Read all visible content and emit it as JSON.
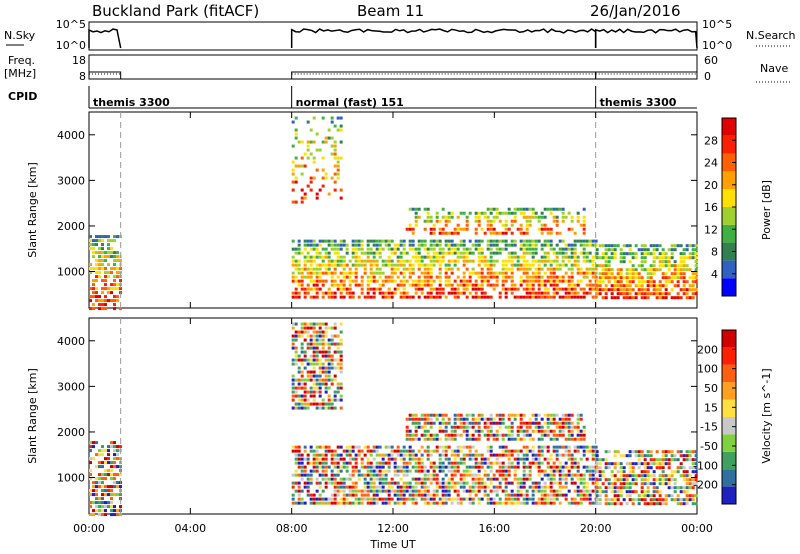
{
  "header": {
    "station": "Buckland Park (fitACF)",
    "beam": "Beam 11",
    "date": "26/Jan/2016"
  },
  "top_panels": {
    "nsky_label": "N.Sky",
    "nsky_ticks": [
      "10^5",
      "10^0"
    ],
    "nsearch_label": "N.Search",
    "freq_label_1": "Freq.",
    "freq_label_2": "[MHz]",
    "freq_ticks": [
      "18",
      "8"
    ],
    "nave_label": "Nave",
    "nave_ticks": [
      "60",
      "0"
    ],
    "cpid_label": "CPID",
    "cpid_segments": [
      {
        "label": "themis 3300",
        "start_hour": 0.0,
        "end_hour": 1.25
      },
      {
        "label": "normal (fast) 151",
        "start_hour": 8.0,
        "end_hour": 20.0
      },
      {
        "label": "themis 3300",
        "start_hour": 20.0,
        "end_hour": 24.0
      }
    ]
  },
  "chart_data": [
    {
      "type": "heatmap",
      "panel": "power",
      "ylabel": "Slant Range [km]",
      "yticks": [
        "1000",
        "2000",
        "3000",
        "4000"
      ],
      "ylim": [
        200,
        4500
      ],
      "colorbar_label": "Power [dB]",
      "colorbar_ticks": [
        "28",
        "24",
        "20",
        "16",
        "12",
        "8",
        "4"
      ],
      "colorbar_colors": [
        "#0000ff",
        "#3060c0",
        "#308050",
        "#40b040",
        "#a0d030",
        "#ffe000",
        "#ffa000",
        "#ff6000",
        "#ff2000",
        "#e00000"
      ],
      "data_blocks": [
        {
          "start_hour": 0.0,
          "end_hour": 1.25,
          "range_min": 200,
          "range_max": 1800,
          "level": "high"
        },
        {
          "start_hour": 8.0,
          "end_hour": 10.0,
          "range_min": 2500,
          "range_max": 4400,
          "level": "low"
        },
        {
          "start_hour": 8.0,
          "end_hour": 20.0,
          "range_min": 400,
          "range_max": 1700,
          "level": "high"
        },
        {
          "start_hour": 12.5,
          "end_hour": 19.5,
          "range_min": 1800,
          "range_max": 2400,
          "level": "medium"
        },
        {
          "start_hour": 20.0,
          "end_hour": 24.0,
          "range_min": 400,
          "range_max": 1600,
          "level": "high"
        }
      ]
    },
    {
      "type": "heatmap",
      "panel": "velocity",
      "ylabel": "Slant Range [km]",
      "yticks": [
        "1000",
        "2000",
        "3000",
        "4000"
      ],
      "ylim": [
        200,
        4500
      ],
      "colorbar_label": "Velocity [m s^-1]",
      "colorbar_ticks": [
        "200",
        "100",
        "50",
        "15",
        "-15",
        "-50",
        "-100",
        "-200"
      ],
      "colorbar_colors": [
        "#2020c0",
        "#3070a0",
        "#40a060",
        "#80d040",
        "#c8c8c8",
        "#ffe040",
        "#ffa020",
        "#ff6010",
        "#ff2000",
        "#d00000"
      ],
      "data_blocks": [
        {
          "start_hour": 0.0,
          "end_hour": 1.25,
          "range_min": 200,
          "range_max": 1800
        },
        {
          "start_hour": 8.0,
          "end_hour": 10.0,
          "range_min": 2500,
          "range_max": 4400
        },
        {
          "start_hour": 8.0,
          "end_hour": 20.0,
          "range_min": 400,
          "range_max": 1700
        },
        {
          "start_hour": 12.5,
          "end_hour": 19.5,
          "range_min": 1800,
          "range_max": 2400
        },
        {
          "start_hour": 20.0,
          "end_hour": 24.0,
          "range_min": 400,
          "range_max": 1600
        }
      ]
    }
  ],
  "xaxis": {
    "label": "Time UT",
    "ticks": [
      "00:00",
      "04:00",
      "08:00",
      "12:00",
      "16:00",
      "20:00",
      "00:00"
    ],
    "tick_hours": [
      0,
      4,
      8,
      12,
      16,
      20,
      24
    ]
  }
}
